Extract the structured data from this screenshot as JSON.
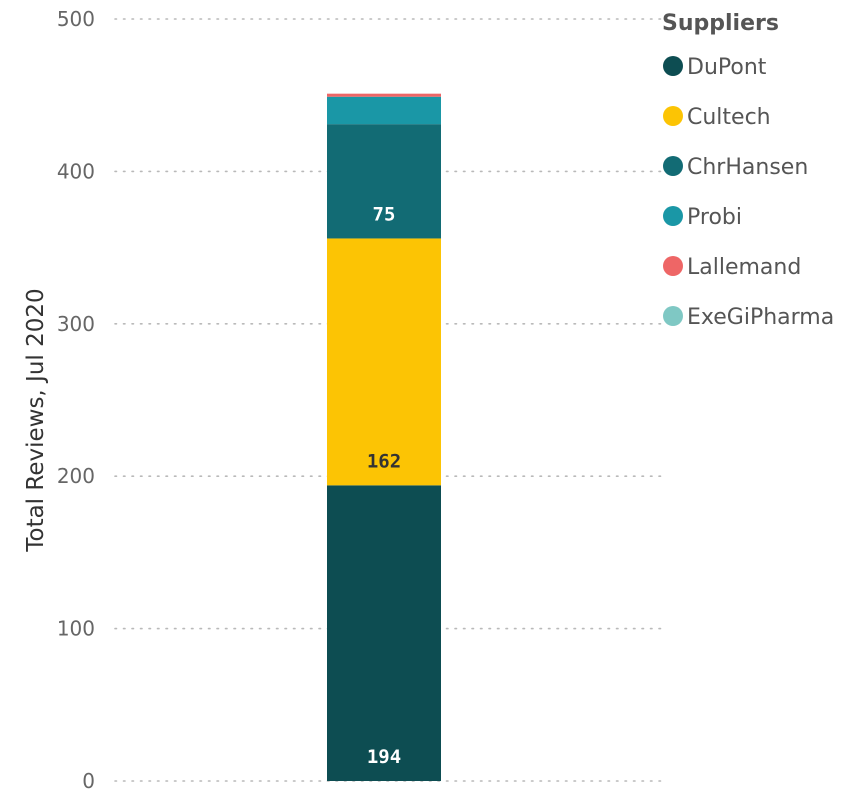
{
  "chart_data": {
    "type": "bar",
    "stacked": true,
    "title": "",
    "xlabel": "",
    "ylabel": "Total Reviews, Jul 2020",
    "ylim": [
      0,
      500
    ],
    "yticks": [
      0,
      100,
      200,
      300,
      400,
      500
    ],
    "grid": true,
    "legend": {
      "title": "Suppliers",
      "position": "right"
    },
    "series": [
      {
        "name": "DuPont",
        "value": 194,
        "label": "194",
        "color": "#0d4d52",
        "label_color": "#ffffff"
      },
      {
        "name": "Cultech",
        "value": 162,
        "label": "162",
        "color": "#fcc404",
        "label_color": "#333333"
      },
      {
        "name": "ChrHansen",
        "value": 75,
        "label": "75",
        "color": "#126b74",
        "label_color": "#ffffff"
      },
      {
        "name": "Probi",
        "value": 18,
        "label": "",
        "color": "#1a97a6",
        "label_color": "#ffffff"
      },
      {
        "name": "Lallemand",
        "value": 2,
        "label": "",
        "color": "#ee6666",
        "label_color": "#ffffff"
      },
      {
        "name": "ExeGiPharma",
        "value": 0,
        "label": "",
        "color": "#7fc8c4",
        "label_color": "#ffffff"
      }
    ]
  }
}
